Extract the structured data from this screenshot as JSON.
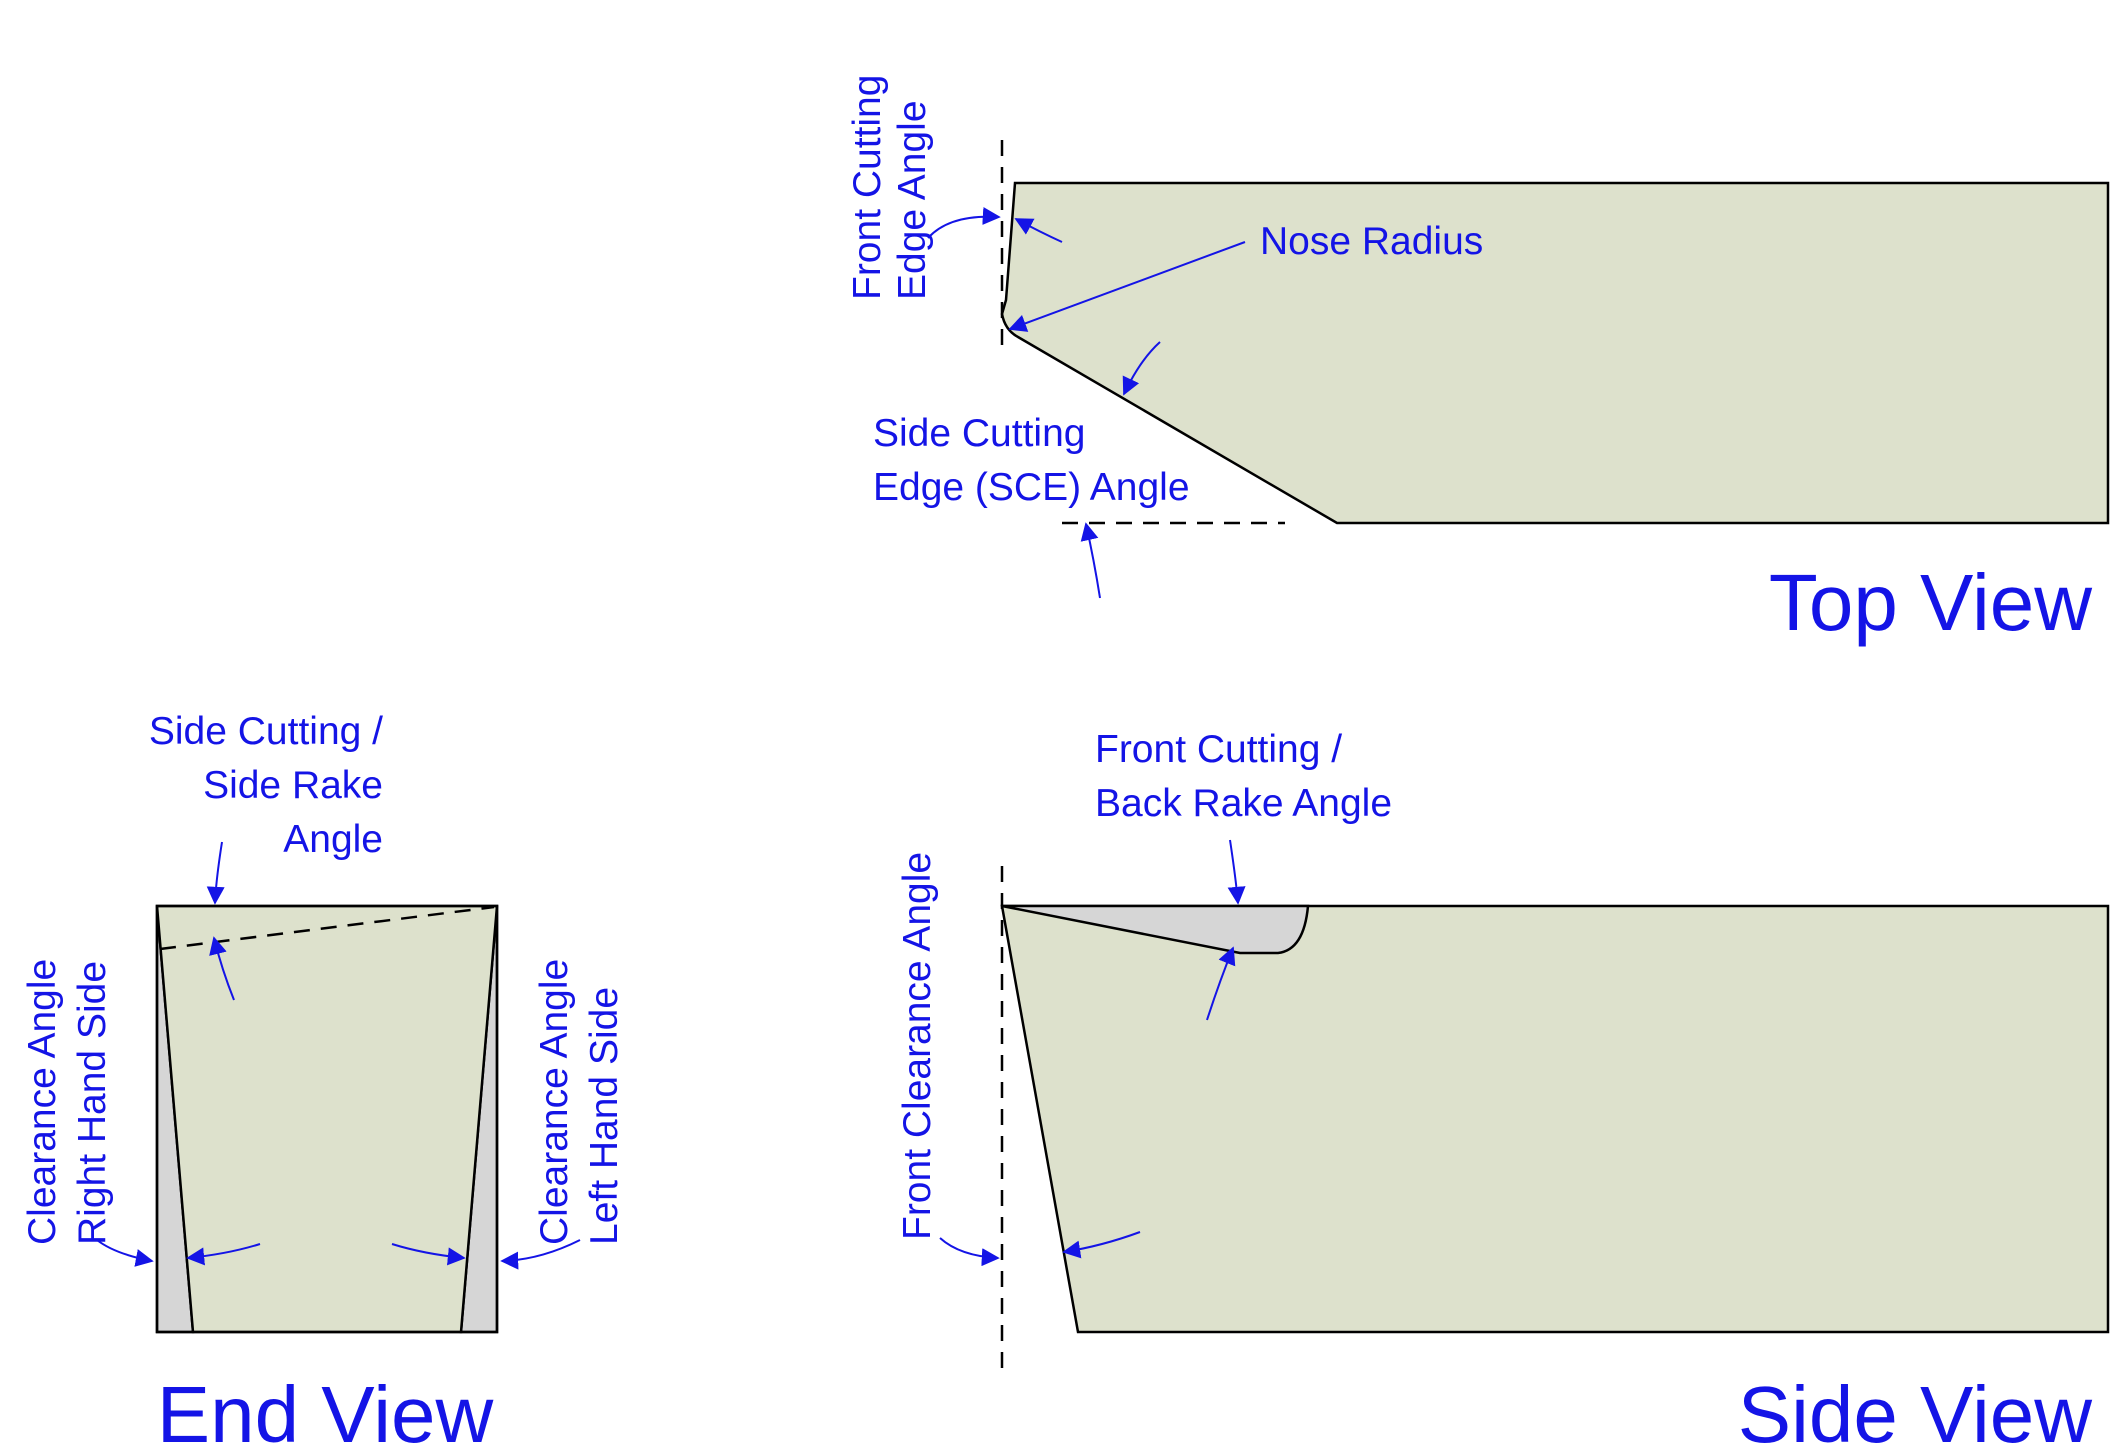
{
  "colors": {
    "label": "#1414e6",
    "tool_body": "#dde1cc",
    "relief": "#d6d6d6",
    "outline": "#000000"
  },
  "top_view": {
    "title": "Top View",
    "front_cutting_edge_angle": [
      "Front Cutting",
      "Edge Angle"
    ],
    "nose_radius": "Nose Radius",
    "side_cutting_edge_angle": [
      "Side Cutting",
      "Edge (SCE) Angle"
    ]
  },
  "end_view": {
    "title": "End View",
    "side_rake_angle": [
      "Side Cutting /",
      "Side Rake",
      "Angle"
    ],
    "clearance_right": [
      "Clearance Angle",
      "Right Hand Side"
    ],
    "clearance_left": [
      "Clearance Angle",
      "Left Hand Side"
    ]
  },
  "side_view": {
    "title": "Side View",
    "back_rake_angle": [
      "Front Cutting /",
      "Back Rake Angle"
    ],
    "front_clearance_angle": "Front Clearance Angle"
  }
}
